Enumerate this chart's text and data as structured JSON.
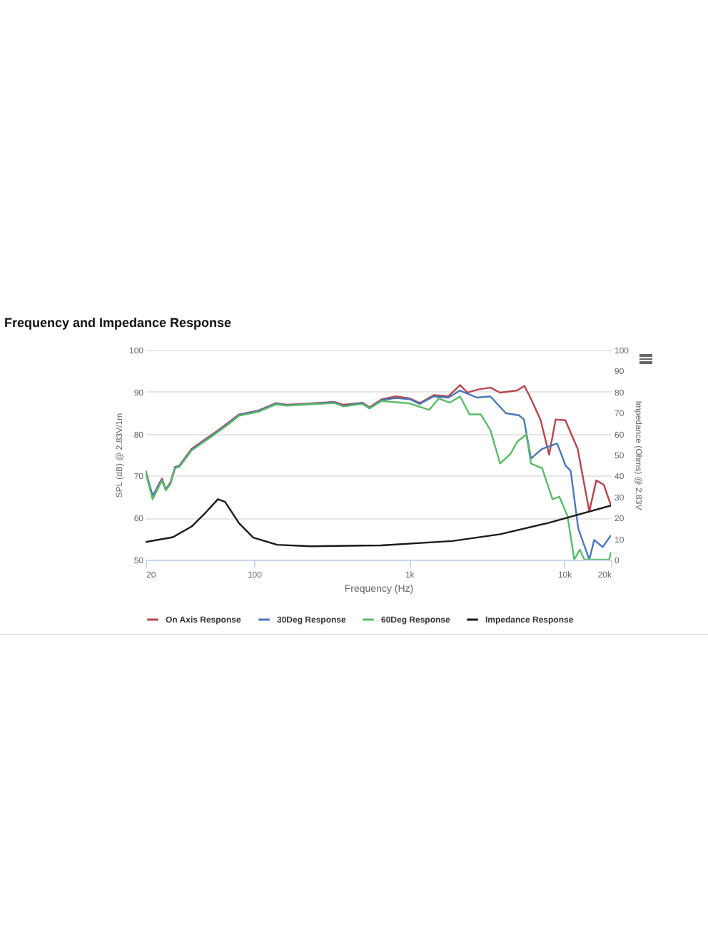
{
  "chart_data": {
    "type": "line",
    "title": "Frequency and Impedance Response",
    "xlabel": "Frequency (Hz)",
    "ylabel": "SPL (dB) @ 2.83V/1m",
    "y2label": "Impedance (Ohms) @ 2.83V",
    "log": "x",
    "xlim": [
      20,
      20000
    ],
    "xticks": [
      20,
      100,
      {
        "value": 1000,
        "label": "1k"
      },
      {
        "value": 10000,
        "label": "10k"
      },
      {
        "value": 20000,
        "label": "20k"
      }
    ],
    "ylim": [
      50,
      100
    ],
    "yticks": [
      50,
      60,
      70,
      80,
      90,
      100
    ],
    "y2lim": [
      0,
      100
    ],
    "y2ticks": [
      0,
      10,
      20,
      30,
      40,
      50,
      60,
      70,
      80,
      90,
      100
    ],
    "grid": "y",
    "legend": "bottom",
    "marker": "none",
    "line_style": "solid",
    "series": [
      {
        "name": "On Axis Response",
        "color": "#b5464b",
        "x": [
          20,
          22.2,
          24.2,
          25.5,
          27,
          28.9,
          31,
          33,
          39.6,
          47.3,
          54.6,
          69.9,
          80.1,
          106,
          139,
          162,
          230,
          328,
          378,
          499,
          555,
          664,
          822,
          1016,
          1169,
          1441,
          1787,
          2130,
          2380,
          2750,
          3340,
          3860,
          4970,
          5530,
          6090,
          7050,
          7990,
          8800,
          10170,
          12200,
          14500,
          16100,
          18000,
          20000
        ],
        "values": [
          71.2,
          65,
          67.8,
          69.3,
          66.7,
          68.4,
          72.1,
          72.4,
          76.4,
          78.4,
          80,
          82.9,
          84.6,
          85.5,
          87.3,
          86.9,
          87.2,
          87.6,
          86.9,
          87.4,
          86.3,
          88.2,
          88.9,
          88.4,
          87.3,
          89.2,
          88.9,
          91.6,
          89.8,
          90.5,
          91,
          89.8,
          90.3,
          91.4,
          88.4,
          83.2,
          75,
          83.4,
          83.2,
          76.4,
          61.5,
          68.9,
          67.8,
          62.9
        ]
      },
      {
        "name": "30Deg Response",
        "color": "#4a78b8",
        "x": [
          20,
          22.2,
          24.2,
          25.5,
          27,
          28.9,
          31,
          33,
          39.6,
          47.3,
          54.6,
          69.9,
          80.1,
          106,
          139,
          162,
          230,
          328,
          378,
          499,
          555,
          664,
          822,
          1016,
          1169,
          1441,
          1787,
          2130,
          2750,
          3340,
          4200,
          5100,
          5500,
          6100,
          7200,
          9000,
          10200,
          11000,
          12300,
          14500,
          15600,
          17700,
          20000
        ],
        "values": [
          71,
          65.3,
          67.5,
          69,
          66.8,
          68.2,
          72,
          72.3,
          76.2,
          78.2,
          79.8,
          82.7,
          84.5,
          85.4,
          87.2,
          86.8,
          87.1,
          87.5,
          86.6,
          87.3,
          86.1,
          88,
          88.5,
          88.2,
          87.1,
          88.9,
          88.6,
          90.3,
          88.6,
          88.9,
          84.9,
          84.4,
          83.4,
          74.1,
          76.4,
          77.7,
          72.4,
          71.2,
          57.5,
          50,
          54.7,
          53,
          55.8
        ]
      },
      {
        "name": "60Deg Response",
        "color": "#5cba6a",
        "x": [
          20,
          22.2,
          24.2,
          25.5,
          27,
          28.9,
          31,
          33,
          39.6,
          47.3,
          54.6,
          69.9,
          80.1,
          106,
          139,
          162,
          230,
          328,
          378,
          499,
          555,
          664,
          822,
          1016,
          1169,
          1350,
          1550,
          1830,
          2130,
          2450,
          2900,
          3340,
          3860,
          4500,
          4970,
          5700,
          6100,
          7200,
          8400,
          9300,
          10500,
          11600,
          12600,
          13500,
          19500,
          20000
        ],
        "values": [
          70.8,
          64.4,
          67.2,
          68.8,
          66.5,
          68,
          71.8,
          72.1,
          76,
          78,
          79.6,
          82.5,
          84.3,
          85.2,
          87,
          86.7,
          87,
          87.3,
          86.5,
          87.1,
          86,
          87.8,
          87.5,
          87.2,
          86.4,
          85.7,
          88.4,
          87.4,
          88.9,
          84.6,
          84.6,
          80.9,
          72.9,
          75.2,
          78.1,
          79.8,
          72.9,
          71.8,
          64.4,
          65,
          60.4,
          50,
          52.4,
          50,
          50,
          51.8
        ]
      },
      {
        "name": "Impedance Response",
        "color": "#1a1a1a",
        "axis": "y2",
        "x": [
          20,
          30,
          39.6,
          49,
          58.5,
          65,
          80,
          99,
          141,
          230,
          660,
          1900,
          3860,
          7800,
          20000
        ],
        "values": [
          8.4,
          10.7,
          15.8,
          22.6,
          28.8,
          27.6,
          17.4,
          10.5,
          7.1,
          6.4,
          6.8,
          8.9,
          12.1,
          17.4,
          25.8
        ]
      }
    ]
  }
}
